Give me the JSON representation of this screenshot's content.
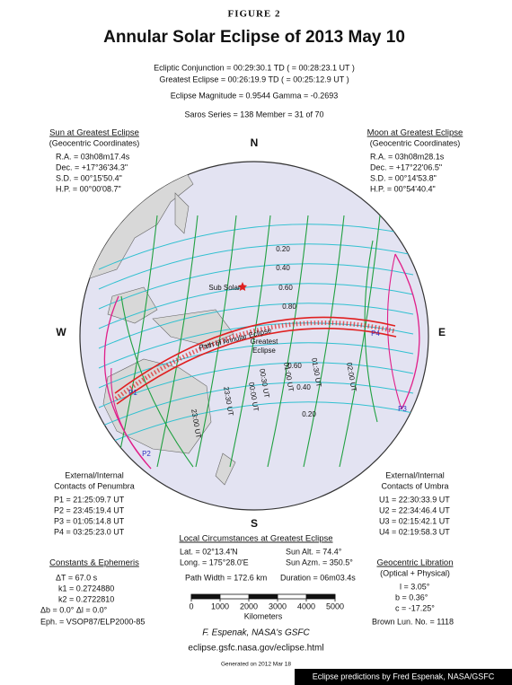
{
  "header": {
    "figure": "FIGURE 2",
    "title": "Annular Solar Eclipse of  2013 May 10",
    "lines": [
      "Ecliptic Conjunction = 00:29:30.1 TD   ( = 00:28:23.1 UT )",
      "Greatest Eclipse = 00:26:19.9 TD   ( = 00:25:12.9 UT )",
      "Eclipse Magnitude = 0.9544        Gamma = -0.2693",
      "Saros Series = 138        Member = 31 of 70"
    ]
  },
  "sun": {
    "title": "Sun at Greatest Eclipse",
    "subtitle": "(Geocentric Coordinates)",
    "lines": [
      "R.A. = 03h08m17.4s",
      "Dec. = +17°36'34.3\"",
      "S.D. = 00°15'50.4\"",
      "H.P. = 00°00'08.7\""
    ]
  },
  "moon": {
    "title": "Moon at Greatest Eclipse",
    "subtitle": "(Geocentric Coordinates)",
    "lines": [
      "R.A. = 03h08m28.1s",
      "Dec. = +17°22'06.5\"",
      "S.D. = 00°14'53.8\"",
      "H.P. = 00°54'40.4\""
    ]
  },
  "compass": {
    "north": "N",
    "west": "W",
    "east": "E",
    "south": "S"
  },
  "map_labels": {
    "sub_solar": "Sub Solar",
    "path": "Path of Annular Eclipse",
    "greatest": [
      "Greatest",
      "Eclipse"
    ],
    "magnitudes_north": [
      "0.20",
      "0.40",
      "0.60",
      "0.80"
    ],
    "magnitudes_south": [
      "0.60",
      "0.40",
      "0.20"
    ],
    "times": [
      "23:00 UT",
      "23:30 UT",
      "00:00 UT",
      "00:30 UT",
      "01:00 UT",
      "01:30 UT",
      "02:00 UT"
    ],
    "contacts": [
      "P1",
      "P2",
      "P3",
      "P4"
    ]
  },
  "penumbra": {
    "title": [
      "External/Internal",
      "Contacts of Penumbra"
    ],
    "lines": [
      "P1 = 21:25:09.7 UT",
      "P2 = 23:45:19.4 UT",
      "P3 = 01:05:14.8 UT",
      "P4 = 03:25:23.0 UT"
    ]
  },
  "umbra": {
    "title": [
      "External/Internal",
      "Contacts of Umbra"
    ],
    "lines": [
      "U1 = 22:30:33.9 UT",
      "U2 = 22:34:46.4 UT",
      "U3 = 02:15:42.1 UT",
      "U4 = 02:19:58.3 UT"
    ]
  },
  "local": {
    "title": "Local Circumstances at Greatest Eclipse",
    "left": [
      "Lat. =  02°13.4'N",
      "Long. = 175°28.0'E"
    ],
    "right": [
      "Sun Alt. =  74.4°",
      "Sun Azm. = 350.5°"
    ],
    "path_width": "Path Width = 172.6 km",
    "duration": "Duration = 06m03.4s"
  },
  "scale_bar": {
    "ticks": [
      0,
      1000,
      2000,
      3000,
      4000,
      5000
    ],
    "label": "Kilometers"
  },
  "constants": {
    "title": "Constants & Ephemeris",
    "lines": [
      "ΔT =   67.0 s",
      "k1 = 0.2724880",
      "k2 = 0.2722810",
      "Δb =  0.0°    Δl =  0.0°",
      "Eph. = VSOP87/ELP2000-85"
    ]
  },
  "libration": {
    "title": "Geocentric Libration",
    "subtitle": "(Optical + Physical)",
    "lines": [
      "l =   3.05°",
      "b =   0.36°",
      "c = -17.25°",
      "Brown Lun. No. = 1118"
    ]
  },
  "credits": {
    "author": "F. Espenak, NASA's GSFC",
    "url": "eclipse.gsfc.nasa.gov/eclipse.html",
    "generated": "Generated on 2012 Mar 18"
  },
  "footer": "Eclipse predictions by Fred Espenak, NASA/GSFC"
}
